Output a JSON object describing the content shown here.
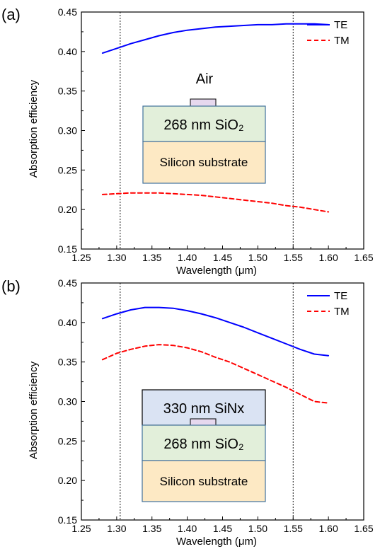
{
  "chart_data": [
    {
      "panel_label": "(a)",
      "type": "line",
      "xlabel": "Wavelength (μm)",
      "ylabel": "Absorption efficiency",
      "xlim": [
        1.25,
        1.65
      ],
      "ylim": [
        0.15,
        0.45
      ],
      "xticks": [
        "1.25",
        "1.30",
        "1.35",
        "1.40",
        "1.45",
        "1.50",
        "1.55",
        "1.60",
        "1.65"
      ],
      "yticks": [
        "0.15",
        "0.20",
        "0.25",
        "0.30",
        "0.35",
        "0.40",
        "0.45"
      ],
      "legend_position": "top-right",
      "vlines": [
        1.305,
        1.55
      ],
      "series": [
        {
          "name": "TE",
          "color": "#0000ff",
          "style": "solid",
          "x": [
            1.28,
            1.3,
            1.32,
            1.34,
            1.36,
            1.38,
            1.4,
            1.42,
            1.44,
            1.46,
            1.48,
            1.5,
            1.52,
            1.54,
            1.56,
            1.58,
            1.6
          ],
          "y": [
            0.398,
            0.404,
            0.41,
            0.415,
            0.42,
            0.424,
            0.427,
            0.429,
            0.431,
            0.432,
            0.433,
            0.434,
            0.434,
            0.435,
            0.435,
            0.435,
            0.434
          ]
        },
        {
          "name": "TM",
          "color": "#ff0000",
          "style": "dashed",
          "x": [
            1.28,
            1.3,
            1.32,
            1.34,
            1.36,
            1.38,
            1.4,
            1.42,
            1.44,
            1.46,
            1.48,
            1.5,
            1.52,
            1.54,
            1.56,
            1.58,
            1.6
          ],
          "y": [
            0.219,
            0.22,
            0.221,
            0.221,
            0.221,
            0.22,
            0.219,
            0.218,
            0.216,
            0.214,
            0.212,
            0.21,
            0.208,
            0.205,
            0.203,
            0.2,
            0.197
          ]
        }
      ],
      "inset": {
        "top_label": "Air",
        "layers": [
          "268 nm SiO₂",
          "Silicon substrate"
        ],
        "colors": {
          "sio2": "#e2efda",
          "substrate": "#fde9c4",
          "waveguide": "#e6d8ee",
          "border": "#41719c"
        }
      }
    },
    {
      "panel_label": "(b)",
      "type": "line",
      "xlabel": "Wavelength (μm)",
      "ylabel": "Absorption efficiency",
      "xlim": [
        1.25,
        1.65
      ],
      "ylim": [
        0.15,
        0.45
      ],
      "xticks": [
        "1.25",
        "1.30",
        "1.35",
        "1.40",
        "1.45",
        "1.50",
        "1.55",
        "1.60",
        "1.65"
      ],
      "yticks": [
        "0.15",
        "0.20",
        "0.25",
        "0.30",
        "0.35",
        "0.40",
        "0.45"
      ],
      "legend_position": "top-right",
      "vlines": [
        1.305,
        1.55
      ],
      "series": [
        {
          "name": "TE",
          "color": "#0000ff",
          "style": "solid",
          "x": [
            1.28,
            1.3,
            1.32,
            1.34,
            1.36,
            1.38,
            1.4,
            1.42,
            1.44,
            1.46,
            1.48,
            1.5,
            1.52,
            1.54,
            1.56,
            1.58,
            1.6
          ],
          "y": [
            0.405,
            0.411,
            0.416,
            0.419,
            0.419,
            0.418,
            0.415,
            0.411,
            0.406,
            0.4,
            0.394,
            0.387,
            0.38,
            0.373,
            0.366,
            0.36,
            0.358
          ]
        },
        {
          "name": "TM",
          "color": "#ff0000",
          "style": "dashed",
          "x": [
            1.28,
            1.3,
            1.32,
            1.34,
            1.36,
            1.38,
            1.4,
            1.42,
            1.44,
            1.46,
            1.48,
            1.5,
            1.52,
            1.54,
            1.56,
            1.58,
            1.6
          ],
          "y": [
            0.353,
            0.361,
            0.366,
            0.37,
            0.372,
            0.371,
            0.368,
            0.363,
            0.356,
            0.35,
            0.342,
            0.334,
            0.326,
            0.318,
            0.309,
            0.3,
            0.298
          ]
        }
      ],
      "inset": {
        "top_label": "",
        "layers": [
          "330 nm SiNx",
          "268 nm SiO₂",
          "Silicon substrate"
        ],
        "colors": {
          "sinx": "#dae3f3",
          "sio2": "#e2efda",
          "substrate": "#fde9c4",
          "waveguide": "#e6d8ee",
          "border": "#000000"
        }
      }
    }
  ]
}
